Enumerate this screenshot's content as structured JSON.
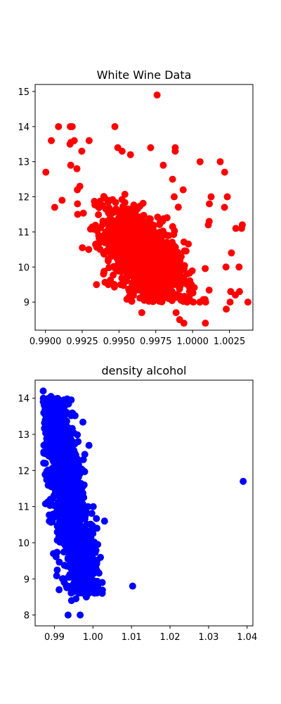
{
  "chart_data": [
    {
      "type": "scatter",
      "title": "White Wine Data",
      "xlabel": "",
      "ylabel": "",
      "xlim": [
        0.9893,
        1.0041
      ],
      "ylim": [
        8.2,
        15.2
      ],
      "x_ticks": [
        0.99,
        0.9925,
        0.995,
        0.9975,
        1.0,
        1.0025
      ],
      "x_tick_labels": [
        "0.9900",
        "0.9925",
        "0.9950",
        "0.9975",
        "1.0000",
        "1.0025"
      ],
      "y_ticks": [
        9,
        10,
        11,
        12,
        13,
        14,
        15
      ],
      "y_tick_labels": [
        "9",
        "10",
        "11",
        "12",
        "13",
        "14",
        "15"
      ],
      "grid": false,
      "color": "#ff0000",
      "series": [
        {
          "points": [
            [
              0.99759,
              14.9
            ],
            [
              0.9904,
              13.6
            ],
            [
              0.99089,
              14.0
            ],
            [
              0.99182,
              14.0
            ],
            [
              0.99169,
              14.0
            ],
            [
              0.99472,
              14.0
            ],
            [
              0.99003,
              12.7
            ],
            [
              0.99063,
              11.7
            ],
            [
              0.99113,
              11.9
            ],
            [
              0.99167,
              13.5
            ],
            [
              0.99173,
              13.55
            ],
            [
              0.99196,
              13.6
            ],
            [
              0.99172,
              12.9
            ],
            [
              0.99297,
              13.6
            ],
            [
              0.99247,
              13.3
            ],
            [
              0.99218,
              11.8
            ],
            [
              0.99217,
              12.2
            ],
            [
              0.99234,
              12.3
            ],
            [
              0.99214,
              12.8
            ],
            [
              0.99219,
              11.5
            ],
            [
              0.99251,
              10.55
            ],
            [
              0.99294,
              10.5
            ],
            [
              0.99347,
              9.5
            ],
            [
              0.99395,
              10.4
            ],
            [
              0.99427,
              9.5
            ],
            [
              0.99492,
              13.4
            ],
            [
              0.99521,
              13.3
            ],
            [
              0.99578,
              13.2
            ],
            [
              0.99715,
              13.4
            ],
            [
              0.99882,
              13.4
            ],
            [
              0.99882,
              13.3
            ],
            [
              0.99801,
              12.9
            ],
            [
              0.99864,
              12.5
            ],
            [
              0.99936,
              12.2
            ],
            [
              0.99875,
              12.0
            ],
            [
              1.00051,
              13.0
            ],
            [
              1.00188,
              13.0
            ],
            [
              1.00218,
              12.7
            ],
            [
              1.00126,
              12.0
            ],
            [
              1.00236,
              12.0
            ],
            [
              1.00114,
              11.8
            ],
            [
              1.00113,
              11.3
            ],
            [
              1.00107,
              11.2
            ],
            [
              1.00217,
              11.7
            ],
            [
              1.00294,
              11.1
            ],
            [
              1.00338,
              11.2
            ],
            [
              1.00333,
              11.1
            ],
            [
              1.00264,
              10.4
            ],
            [
              1.00227,
              10.0
            ],
            [
              1.00316,
              10.0
            ],
            [
              1.00229,
              8.8
            ],
            [
              1.00291,
              9.2
            ],
            [
              1.00319,
              9.3
            ],
            [
              1.00376,
              9.0
            ],
            [
              1.00259,
              9.3
            ],
            [
              1.00255,
              9.0
            ],
            [
              1.00087,
              8.4
            ],
            [
              0.99941,
              8.4
            ],
            [
              0.99912,
              8.5
            ],
            [
              0.99888,
              8.7
            ],
            [
              0.99655,
              8.7
            ],
            [
              0.99963,
              9.0
            ],
            [
              1.00005,
              9.0
            ],
            [
              1.00049,
              9.0
            ],
            [
              1.00089,
              9.0
            ],
            [
              0.99395,
              9.8
            ],
            [
              0.99512,
              9.5
            ],
            [
              0.99362,
              10.9
            ],
            [
              0.99416,
              11.3
            ]
          ]
        }
      ]
    },
    {
      "type": "scatter",
      "title": "density alcohol",
      "xlabel": "",
      "ylabel": "",
      "xlim": [
        0.985,
        1.0415
      ],
      "ylim": [
        7.7,
        14.5
      ],
      "x_ticks": [
        0.99,
        1.0,
        1.01,
        1.02,
        1.03,
        1.04
      ],
      "x_tick_labels": [
        "0.99",
        "1.00",
        "1.01",
        "1.02",
        "1.03",
        "1.04"
      ],
      "y_ticks": [
        8,
        9,
        10,
        11,
        12,
        13,
        14
      ],
      "y_tick_labels": [
        "8",
        "9",
        "10",
        "11",
        "12",
        "13",
        "14"
      ],
      "grid": false,
      "color": "#0000ff",
      "series": [
        {
          "points": [
            [
              0.9871,
              14.2
            ],
            [
              0.98713,
              14.0
            ],
            [
              0.98711,
              13.9
            ],
            [
              0.98923,
              14.0
            ],
            [
              0.98912,
              14.05
            ],
            [
              0.98741,
              13.6
            ],
            [
              0.98815,
              13.5
            ],
            [
              0.98832,
              13.6
            ],
            [
              0.99234,
              12.5
            ],
            [
              0.99361,
              12.3
            ],
            [
              0.99615,
              12.8
            ],
            [
              0.99751,
              12.3
            ],
            [
              0.99738,
              12.0
            ],
            [
              0.99771,
              11.6
            ],
            [
              0.99871,
              11.0
            ],
            [
              1.00008,
              11.0
            ],
            [
              1.00301,
              10.6
            ],
            [
              1.00103,
              10.4
            ],
            [
              1.00241,
              8.9
            ],
            [
              1.00241,
              8.6
            ],
            [
              1.0103,
              8.8
            ],
            [
              1.03898,
              11.7
            ],
            [
              0.99355,
              8.0
            ],
            [
              0.99669,
              8.0
            ],
            [
              0.99444,
              8.4
            ],
            [
              0.99559,
              8.45
            ],
            [
              0.99829,
              8.5
            ],
            [
              0.99122,
              8.7
            ],
            [
              0.98978,
              10.7
            ],
            [
              0.98868,
              10.6
            ],
            [
              0.98861,
              11.7
            ],
            [
              0.98975,
              9.7
            ],
            [
              0.99211,
              9.0
            ],
            [
              1.00103,
              9.5
            ],
            [
              1.0012,
              9.2
            ]
          ]
        }
      ]
    }
  ]
}
